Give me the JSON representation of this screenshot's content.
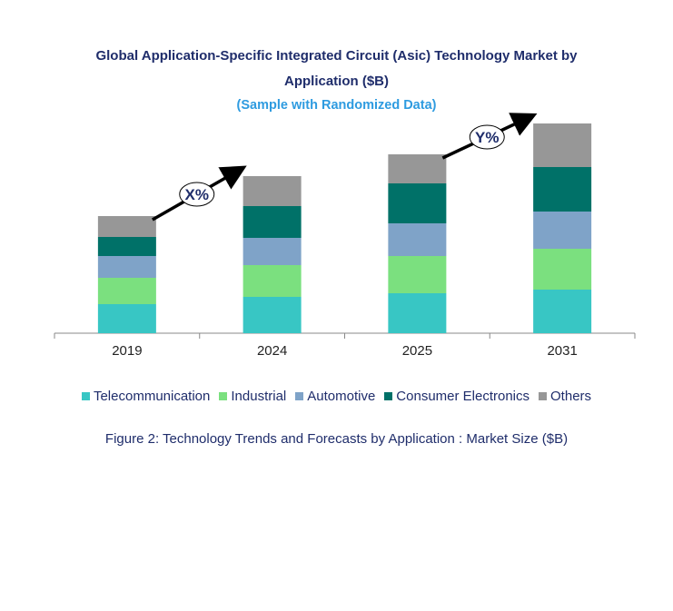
{
  "chart_data": {
    "type": "bar",
    "stacked": true,
    "title": "Global Application-Specific Integrated Circuit (Asic) Technology Market by Application ($B)",
    "title_line1": "Global Application-Specific Integrated Circuit (Asic) Technology Market by",
    "title_line2": "Application ($B)",
    "subtitle": "(Sample with Randomized Data)",
    "caption": "Figure 2: Technology  Trends  and Forecasts by Application : Market Size ($B)",
    "categories": [
      "2019",
      "2024",
      "2025",
      "2031"
    ],
    "series": [
      {
        "name": "Telecommunication",
        "color": "#38c6c4",
        "values": [
          32,
          40,
          44,
          48
        ]
      },
      {
        "name": "Industrial",
        "color": "#7be07f",
        "values": [
          29,
          35,
          41,
          45
        ]
      },
      {
        "name": "Automotive",
        "color": "#7fa3c8",
        "values": [
          24,
          30,
          36,
          41
        ]
      },
      {
        "name": "Consumer Electronics",
        "color": "#007168",
        "values": [
          21,
          35,
          44,
          49
        ]
      },
      {
        "name": "Others",
        "color": "#979797",
        "values": [
          23,
          33,
          32,
          48
        ]
      }
    ],
    "annotations": [
      {
        "label": "X%",
        "from": "2019",
        "to": "2024"
      },
      {
        "label": "Y%",
        "from": "2025",
        "to": "2031"
      }
    ],
    "legend": "bottom",
    "grid": false,
    "y_axis_visible": false
  }
}
